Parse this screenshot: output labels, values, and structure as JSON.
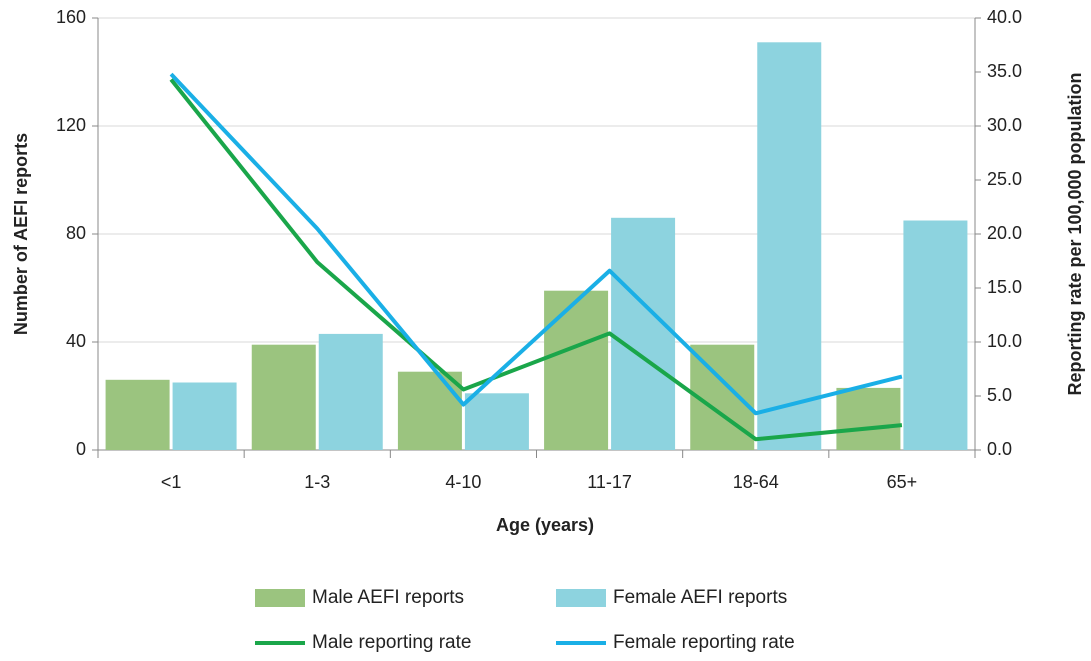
{
  "chart_data": {
    "type": "bar",
    "categories": [
      "<1",
      "1-3",
      "4-10",
      "11-17",
      "18-64",
      "65+"
    ],
    "x_label": "Age (years)",
    "y_label": "Number of AEFI reports",
    "y2_label": "Reporting rate per 100,000 population",
    "ylim": [
      0,
      160
    ],
    "yticks": [
      0,
      40,
      80,
      120,
      160
    ],
    "y2lim": [
      0,
      40
    ],
    "y2ticks": [
      {
        "value": 0,
        "label": "0.0"
      },
      {
        "value": 5,
        "label": "5.0"
      },
      {
        "value": 10,
        "label": "10.0"
      },
      {
        "value": 15,
        "label": "15.0"
      },
      {
        "value": 20,
        "label": "20.0"
      },
      {
        "value": 25,
        "label": "25.0"
      },
      {
        "value": 30,
        "label": "30.0"
      },
      {
        "value": 35,
        "label": "35.0"
      },
      {
        "value": 40,
        "label": "40.0"
      }
    ],
    "grid": true,
    "legend": "bottom",
    "series": [
      {
        "name": "Male AEFI reports",
        "type": "bar",
        "color": "#9bc47f",
        "values": [
          26,
          39,
          29,
          59,
          39,
          23
        ]
      },
      {
        "name": "Female AEFI reports",
        "type": "bar",
        "color": "#8dd3df",
        "values": [
          25,
          43,
          21,
          86,
          151,
          85
        ]
      },
      {
        "name": "Male reporting rate",
        "type": "line",
        "axis": "y2",
        "color": "#1aa64a",
        "values": [
          34.3,
          17.4,
          5.6,
          10.8,
          1.0,
          2.3
        ]
      },
      {
        "name": "Female reporting rate",
        "type": "line",
        "axis": "y2",
        "color": "#1aafe6",
        "values": [
          34.8,
          20.5,
          4.2,
          16.6,
          3.4,
          6.8
        ]
      }
    ]
  }
}
